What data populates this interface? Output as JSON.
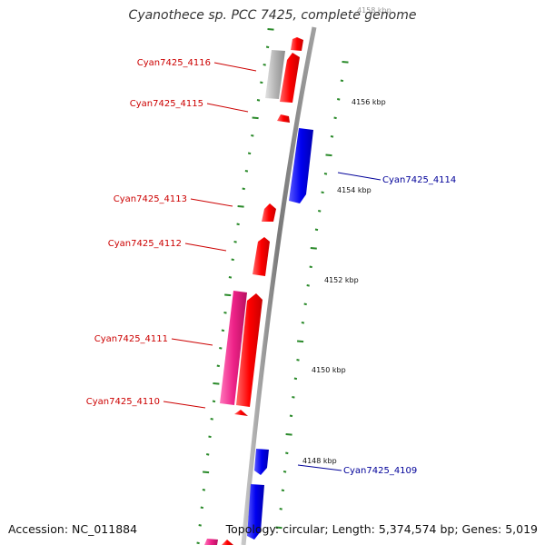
{
  "header": {
    "title": "Cyanothece sp. PCC 7425, complete genome"
  },
  "footer": {
    "accession": "Accession: NC_011884",
    "topology": "Topology: circular; Length: 5,374,574 bp; Genes: 5,019"
  },
  "map": {
    "colors": {
      "backbone": "#8a8a8a",
      "tick": "#2a8a2a",
      "forward_gene": "#ff0000",
      "reverse_gene": "#0000e0",
      "pink_gene": "#ee2288",
      "pseudo_gene": "#b0b0b0",
      "forward_label": "#cc0000",
      "reverse_label": "#000099"
    },
    "scale_labels": [
      "4158 kbp",
      "4156 kbp",
      "4154 kbp",
      "4152 kbp",
      "4150 kbp",
      "4148 kbp"
    ],
    "gene_labels": [
      {
        "text": "Cyan7425_4116",
        "strand": "forward"
      },
      {
        "text": "Cyan7425_4115",
        "strand": "forward"
      },
      {
        "text": "Cyan7425_4114",
        "strand": "reverse"
      },
      {
        "text": "Cyan7425_4113",
        "strand": "forward"
      },
      {
        "text": "Cyan7425_4112",
        "strand": "forward"
      },
      {
        "text": "Cyan7425_4111",
        "strand": "forward"
      },
      {
        "text": "Cyan7425_4110",
        "strand": "forward"
      },
      {
        "text": "Cyan7425_4109",
        "strand": "reverse"
      }
    ]
  }
}
